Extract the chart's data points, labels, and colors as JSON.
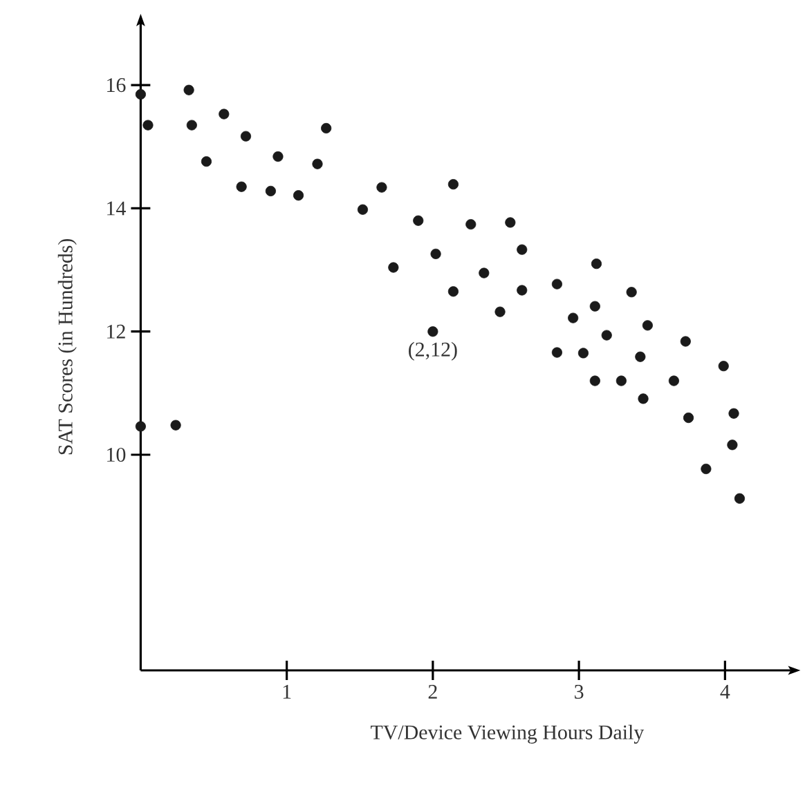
{
  "chart_data": {
    "type": "scatter",
    "xlabel": "TV/Device Viewing Hours Daily",
    "ylabel": "SAT Scores (in Hundreds)",
    "xlim": [
      0,
      4.45
    ],
    "ylim": [
      6.5,
      17
    ],
    "xticks": [
      1,
      2,
      3,
      4
    ],
    "yticks": [
      10,
      12,
      14,
      16
    ],
    "grid": false,
    "marker": "circle",
    "annotations": [
      {
        "text": "(2,12)",
        "x": 2,
        "y": 12
      }
    ],
    "series": [
      {
        "color": "#1a1a1a",
        "x": [
          0,
          0.05,
          0.33,
          0.35,
          0.57,
          0.45,
          0.72,
          0.69,
          0.94,
          0.89,
          1.08,
          1.21,
          1.27,
          1.52,
          1.65,
          1.73,
          1.9,
          2.02,
          2,
          2.14,
          2.26,
          2.53,
          2.61,
          2.35,
          2.14,
          2.61,
          2.46,
          2.85,
          3.12,
          3.36,
          2.96,
          3.11,
          3.19,
          3.47,
          2.85,
          3.03,
          3.42,
          3.11,
          3.29,
          3.44,
          3.65,
          3.73,
          3.75,
          3.99,
          4.06,
          4.05,
          3.87,
          4.1,
          0,
          0.24
        ],
        "values": [
          15.85,
          15.35,
          15.92,
          15.35,
          15.53,
          14.76,
          15.17,
          14.35,
          14.84,
          14.28,
          14.21,
          14.72,
          15.3,
          13.98,
          14.34,
          13.04,
          13.8,
          13.26,
          12,
          14.39,
          13.74,
          13.77,
          13.33,
          12.95,
          12.65,
          12.67,
          12.32,
          12.77,
          13.1,
          12.64,
          12.22,
          12.41,
          11.94,
          12.1,
          11.66,
          11.65,
          11.59,
          11.2,
          11.2,
          10.91,
          11.2,
          11.84,
          10.6,
          11.44,
          10.67,
          10.16,
          9.77,
          9.29,
          10.46,
          10.48
        ]
      }
    ]
  }
}
